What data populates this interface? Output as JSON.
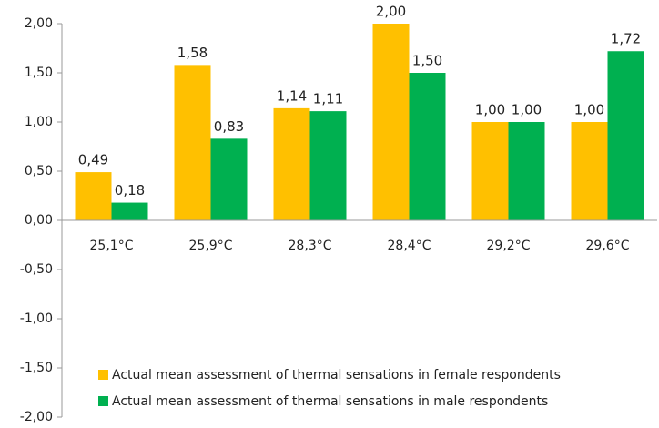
{
  "chart_data": {
    "type": "bar",
    "categories": [
      "25,1°C",
      "25,9°C",
      "28,3°C",
      "28,4°C",
      "29,2°C",
      "29,6°C"
    ],
    "series": [
      {
        "name": "Actual mean assessment of thermal sensations in female respondents",
        "color": "#FFC000",
        "values": [
          0.49,
          1.58,
          1.14,
          2.0,
          1.0,
          1.0
        ],
        "value_labels": [
          "0,49",
          "1,58",
          "1,14",
          "2,00",
          "1,00",
          "1,00"
        ]
      },
      {
        "name": "Actual mean assessment of thermal sensations in male respondents",
        "color": "#00B050",
        "values": [
          0.18,
          0.83,
          1.11,
          1.5,
          1.0,
          1.72
        ],
        "value_labels": [
          "0,18",
          "0,83",
          "1,11",
          "1,50",
          "1,00",
          "1,72"
        ]
      }
    ],
    "ylim": [
      -2,
      2
    ],
    "yticks": [
      {
        "value": 2,
        "label": "2,00"
      },
      {
        "value": 1.5,
        "label": "1,50"
      },
      {
        "value": 1,
        "label": "1,00"
      },
      {
        "value": 0.5,
        "label": "0,50"
      },
      {
        "value": 0,
        "label": "0,00"
      },
      {
        "value": -0.5,
        "label": "-0,50"
      },
      {
        "value": -1,
        "label": "-1,00"
      },
      {
        "value": -1.5,
        "label": "-1,50"
      },
      {
        "value": -2,
        "label": "-2,00"
      }
    ],
    "legend": "lower right"
  }
}
